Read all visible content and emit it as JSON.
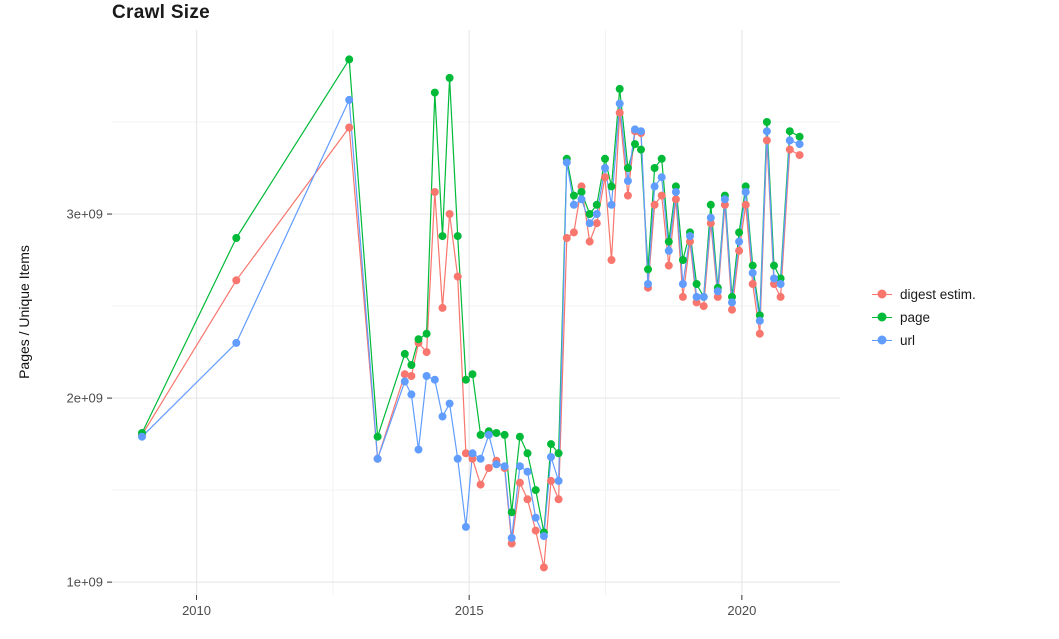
{
  "chart_data": {
    "type": "line",
    "title": "Crawl Size",
    "xlabel": "",
    "ylabel": "Pages / Unique Items",
    "grid": true,
    "legend_position": "right",
    "xlim": [
      2008.45,
      2021.8
    ],
    "ylim": [
      930000000.0,
      4000000000.0
    ],
    "x_ticks": [
      2010,
      2015,
      2020
    ],
    "x_tick_labels": [
      "2010",
      "2015",
      "2020"
    ],
    "x_minor_ticks": [
      2012.5,
      2017.5
    ],
    "y_ticks": [
      1000000000.0,
      2000000000.0,
      3000000000.0
    ],
    "y_tick_labels": [
      "1e+09",
      "2e+09",
      "3e+09"
    ],
    "y_minor_ticks": [
      1500000000.0,
      2500000000.0,
      3500000000.0
    ],
    "x": [
      2009.0,
      2010.73,
      2012.8,
      2013.32,
      2013.82,
      2013.94,
      2014.07,
      2014.22,
      2014.37,
      2014.51,
      2014.64,
      2014.79,
      2014.94,
      2015.06,
      2015.21,
      2015.36,
      2015.5,
      2015.65,
      2015.78,
      2015.93,
      2016.07,
      2016.22,
      2016.37,
      2016.5,
      2016.64,
      2016.79,
      2016.92,
      2017.06,
      2017.21,
      2017.34,
      2017.49,
      2017.61,
      2017.76,
      2017.91,
      2018.04,
      2018.15,
      2018.28,
      2018.4,
      2018.53,
      2018.66,
      2018.79,
      2018.92,
      2019.05,
      2019.17,
      2019.3,
      2019.43,
      2019.56,
      2019.69,
      2019.82,
      2019.95,
      2020.07,
      2020.2,
      2020.33,
      2020.46,
      2020.59,
      2020.71,
      2020.88,
      2021.06
    ],
    "series": [
      {
        "name": "digest estim.",
        "color": "#F8766D",
        "values": [
          1800000000.0,
          2640000000.0,
          3470000000.0,
          1670000000.0,
          2130000000.0,
          2120000000.0,
          2300000000.0,
          2250000000.0,
          3120000000.0,
          2490000000.0,
          3000000000.0,
          2660000000.0,
          1700000000.0,
          1670000000.0,
          1530000000.0,
          1620000000.0,
          1660000000.0,
          1620000000.0,
          1210000000.0,
          1540000000.0,
          1450000000.0,
          1280000000.0,
          1080000000.0,
          1550000000.0,
          1450000000.0,
          2870000000.0,
          2900000000.0,
          3150000000.0,
          2850000000.0,
          2950000000.0,
          3200000000.0,
          2750000000.0,
          3550000000.0,
          3100000000.0,
          3450000000.0,
          3440000000.0,
          2600000000.0,
          3050000000.0,
          3100000000.0,
          2720000000.0,
          3080000000.0,
          2550000000.0,
          2850000000.0,
          2520000000.0,
          2500000000.0,
          2950000000.0,
          2550000000.0,
          3050000000.0,
          2480000000.0,
          2800000000.0,
          3050000000.0,
          2620000000.0,
          2350000000.0,
          3400000000.0,
          2620000000.0,
          2550000000.0,
          3350000000.0,
          3320000000.0
        ]
      },
      {
        "name": "page",
        "color": "#00BA38",
        "values": [
          1810000000.0,
          2870000000.0,
          3840000000.0,
          1790000000.0,
          2240000000.0,
          2180000000.0,
          2320000000.0,
          2350000000.0,
          3660000000.0,
          2880000000.0,
          3740000000.0,
          2880000000.0,
          2100000000.0,
          2130000000.0,
          1800000000.0,
          1820000000.0,
          1810000000.0,
          1800000000.0,
          1380000000.0,
          1790000000.0,
          1700000000.0,
          1500000000.0,
          1270000000.0,
          1750000000.0,
          1700000000.0,
          3300000000.0,
          3100000000.0,
          3120000000.0,
          3000000000.0,
          3050000000.0,
          3300000000.0,
          3150000000.0,
          3680000000.0,
          3250000000.0,
          3380000000.0,
          3350000000.0,
          2700000000.0,
          3250000000.0,
          3300000000.0,
          2850000000.0,
          3150000000.0,
          2750000000.0,
          2900000000.0,
          2620000000.0,
          2550000000.0,
          3050000000.0,
          2600000000.0,
          3100000000.0,
          2550000000.0,
          2900000000.0,
          3150000000.0,
          2720000000.0,
          2450000000.0,
          3500000000.0,
          2720000000.0,
          2650000000.0,
          3450000000.0,
          3420000000.0
        ]
      },
      {
        "name": "url",
        "color": "#619CFF",
        "values": [
          1790000000.0,
          2300000000.0,
          3620000000.0,
          1670000000.0,
          2090000000.0,
          2020000000.0,
          1720000000.0,
          2120000000.0,
          2100000000.0,
          1900000000.0,
          1970000000.0,
          1670000000.0,
          1300000000.0,
          1700000000.0,
          1670000000.0,
          1800000000.0,
          1640000000.0,
          1630000000.0,
          1240000000.0,
          1630000000.0,
          1600000000.0,
          1350000000.0,
          1250000000.0,
          1680000000.0,
          1550000000.0,
          3280000000.0,
          3050000000.0,
          3080000000.0,
          2950000000.0,
          3000000000.0,
          3250000000.0,
          3050000000.0,
          3600000000.0,
          3180000000.0,
          3460000000.0,
          3450000000.0,
          2620000000.0,
          3150000000.0,
          3200000000.0,
          2800000000.0,
          3120000000.0,
          2620000000.0,
          2880000000.0,
          2550000000.0,
          2550000000.0,
          2980000000.0,
          2580000000.0,
          3080000000.0,
          2520000000.0,
          2850000000.0,
          3120000000.0,
          2680000000.0,
          2420000000.0,
          3450000000.0,
          2650000000.0,
          2620000000.0,
          3400000000.0,
          3380000000.0
        ]
      }
    ],
    "legend": [
      {
        "label": "digest estim.",
        "color": "#F8766D"
      },
      {
        "label": "page",
        "color": "#00BA38"
      },
      {
        "label": "url",
        "color": "#619CFF"
      }
    ],
    "colors": {
      "grid_major": "#E8E8E8",
      "grid_minor": "#F3F3F3",
      "tick_label": "#4d4d4d",
      "background": "#FFFFFF"
    }
  }
}
